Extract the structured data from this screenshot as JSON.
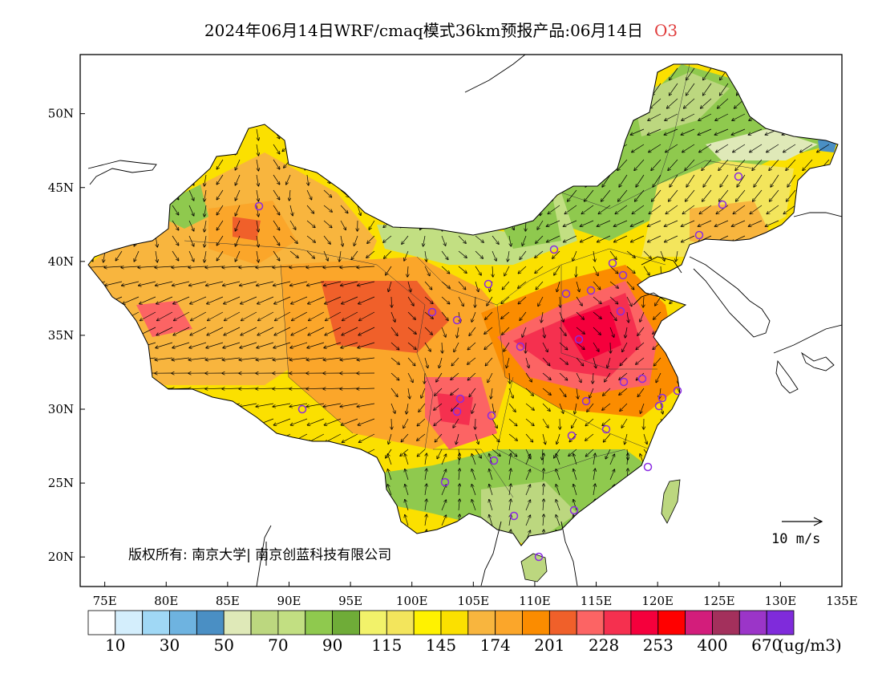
{
  "title": {
    "main": "2024年06月14日WRF/cmaq模式36km预报产品:06月14日",
    "pollutant": "O3"
  },
  "axes": {
    "lat_labels": [
      "50N",
      "45N",
      "40N",
      "35N",
      "30N",
      "25N",
      "20N"
    ],
    "lat_values": [
      50,
      45,
      40,
      35,
      30,
      25,
      20
    ],
    "lon_labels": [
      "75E",
      "80E",
      "85E",
      "90E",
      "95E",
      "100E",
      "105E",
      "110E",
      "115E",
      "120E",
      "125E",
      "130E",
      "135E"
    ],
    "lon_values": [
      75,
      80,
      85,
      90,
      95,
      100,
      105,
      110,
      115,
      120,
      125,
      130,
      135
    ],
    "lon_range": [
      73,
      135
    ],
    "lat_range": [
      18,
      54
    ]
  },
  "copyright": "版权所有: 南京大学| 南京创蓝科技有限公司",
  "wind_reference": "10 m/s",
  "colorbar": {
    "colors": [
      "#ffffff",
      "#d4eefc",
      "#a0d8f5",
      "#6eb3e0",
      "#4a8fc4",
      "#dfe9b8",
      "#bcd77f",
      "#c2df82",
      "#8fc94e",
      "#6fac38",
      "#f2f26a",
      "#f3e55c",
      "#fff200",
      "#fbe000",
      "#f8b53e",
      "#fba62a",
      "#fb8c00",
      "#f0602a",
      "#fc6464",
      "#f5304f",
      "#f5003c",
      "#ff0000",
      "#d31d7b",
      "#a3305c",
      "#9b35c8",
      "#7f2bdb"
    ],
    "labels": [
      "10",
      "30",
      "50",
      "70",
      "90",
      "115",
      "145",
      "174",
      "201",
      "228",
      "253",
      "400",
      "670"
    ],
    "unit": "(ug/m3)"
  },
  "legend_colors": {
    "frame": "#000000",
    "pollutant_label": "#e03c3c",
    "city_marker": "#8a2be2"
  }
}
